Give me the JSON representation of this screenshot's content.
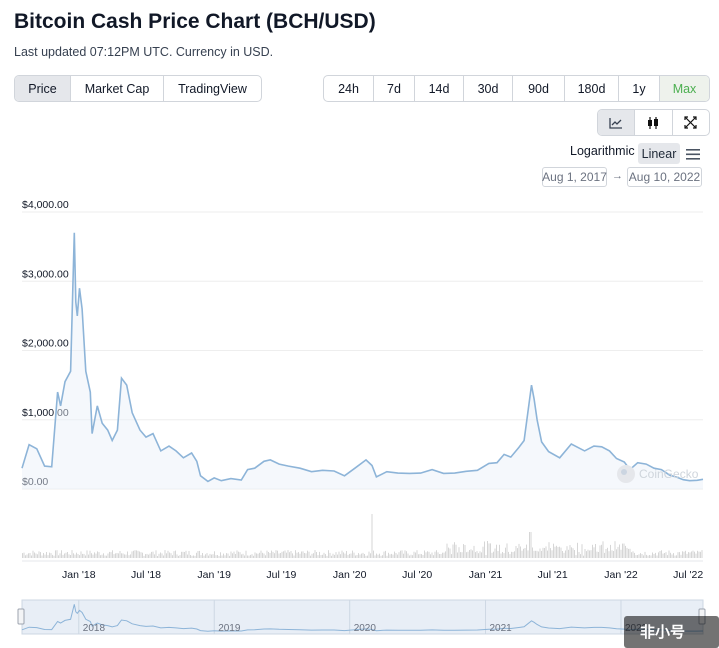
{
  "header": {
    "title": "Bitcoin Cash Price Chart (BCH/USD)",
    "subtitle": "Last updated 07:12PM UTC. Currency in USD."
  },
  "view_tabs": [
    "Price",
    "Market Cap",
    "TradingView"
  ],
  "range_tabs": [
    "24h",
    "7d",
    "14d",
    "30d",
    "90d",
    "180d",
    "1y",
    "Max"
  ],
  "active_view": "Price",
  "active_range": "Max",
  "chart_tools": {
    "items": [
      "line-chart-icon",
      "candlestick-icon",
      "fullscreen-icon"
    ],
    "active": "line-chart-icon"
  },
  "scale": {
    "logarithmic_label": "Logarithmic",
    "linear_label": "Linear",
    "active": "Linear"
  },
  "date_range": {
    "from": "Aug 1, 2017",
    "to": "Aug 10, 2022",
    "arrow": "→"
  },
  "watermark": "CoinGecko",
  "corner_watermark": "非小号",
  "colors": {
    "line": "#8db4d8",
    "volume": "#d6d6d6",
    "accent_green": "#4caf50",
    "navigator_bg": "#e8eef6"
  },
  "chart_data": {
    "type": "line",
    "series": [
      {
        "x": [
          "2017-08-01",
          "2017-08-20",
          "2017-09-10",
          "2017-10-01",
          "2017-10-20",
          "2017-11-05",
          "2017-11-13",
          "2017-11-25",
          "2017-12-10",
          "2017-12-20",
          "2017-12-24",
          "2017-12-28",
          "2018-01-03",
          "2018-01-10",
          "2018-01-20",
          "2018-02-01",
          "2018-02-06",
          "2018-02-20",
          "2018-03-05",
          "2018-03-20",
          "2018-04-01",
          "2018-04-15",
          "2018-04-26",
          "2018-05-10",
          "2018-05-25",
          "2018-06-15",
          "2018-07-01",
          "2018-07-20",
          "2018-08-10",
          "2018-09-01",
          "2018-09-20",
          "2018-10-10",
          "2018-11-01",
          "2018-11-15",
          "2018-11-25",
          "2018-12-15",
          "2019-01-01",
          "2019-01-20",
          "2019-02-15",
          "2019-03-15",
          "2019-04-01",
          "2019-04-20",
          "2019-05-15",
          "2019-06-01",
          "2019-06-25",
          "2019-07-20",
          "2019-08-20",
          "2019-09-20",
          "2019-10-20",
          "2019-11-20",
          "2019-12-18",
          "2020-01-15",
          "2020-02-14",
          "2020-03-01",
          "2020-03-13",
          "2020-04-10",
          "2020-05-10",
          "2020-06-10",
          "2020-07-10",
          "2020-08-10",
          "2020-09-10",
          "2020-10-10",
          "2020-11-10",
          "2020-12-10",
          "2021-01-10",
          "2021-02-01",
          "2021-02-20",
          "2021-03-10",
          "2021-04-01",
          "2021-04-15",
          "2021-04-25",
          "2021-05-05",
          "2021-05-12",
          "2021-05-20",
          "2021-06-01",
          "2021-06-20",
          "2021-07-20",
          "2021-08-20",
          "2021-09-07",
          "2021-09-25",
          "2021-10-20",
          "2021-11-10",
          "2021-12-01",
          "2021-12-20",
          "2022-01-10",
          "2022-01-25",
          "2022-02-15",
          "2022-03-10",
          "2022-03-31",
          "2022-04-20",
          "2022-05-12",
          "2022-06-01",
          "2022-06-18",
          "2022-07-05",
          "2022-07-25",
          "2022-08-10"
        ],
        "values": [
          300,
          640,
          580,
          330,
          320,
          1400,
          1200,
          1550,
          1700,
          3700,
          2700,
          2500,
          2900,
          2600,
          1700,
          1400,
          800,
          1200,
          950,
          850,
          700,
          850,
          1600,
          1500,
          1100,
          850,
          750,
          800,
          550,
          620,
          550,
          450,
          520,
          400,
          190,
          110,
          160,
          120,
          150,
          130,
          280,
          300,
          400,
          420,
          360,
          330,
          300,
          250,
          270,
          260,
          190,
          300,
          420,
          340,
          175,
          250,
          230,
          225,
          230,
          280,
          225,
          230,
          255,
          270,
          370,
          380,
          500,
          460,
          600,
          700,
          1100,
          1500,
          1300,
          1000,
          680,
          540,
          450,
          650,
          600,
          550,
          620,
          610,
          550,
          440,
          390,
          280,
          380,
          360,
          300,
          280,
          200,
          170,
          135,
          120,
          125,
          140
        ]
      }
    ],
    "ylim": [
      0,
      4000
    ],
    "yticks": [
      0,
      1000,
      2000,
      3000,
      4000
    ],
    "ytick_labels": [
      "$0.00",
      "$1,000.00",
      "$2,000.00",
      "$3,000.00",
      "$4,000.00"
    ],
    "xticks": [
      "2018-01-01",
      "2018-07-01",
      "2019-01-01",
      "2019-07-01",
      "2020-01-01",
      "2020-07-01",
      "2021-01-01",
      "2021-07-01",
      "2022-01-01",
      "2022-07-01"
    ],
    "xtick_labels": [
      "Jan '18",
      "Jul '18",
      "Jan '19",
      "Jul '19",
      "Jan '20",
      "Jul '20",
      "Jan '21",
      "Jul '21",
      "Jan '22",
      "Jul '22"
    ],
    "navigator_labels": [
      "2018",
      "2019",
      "2020",
      "2021",
      "2022"
    ],
    "grid": true
  }
}
